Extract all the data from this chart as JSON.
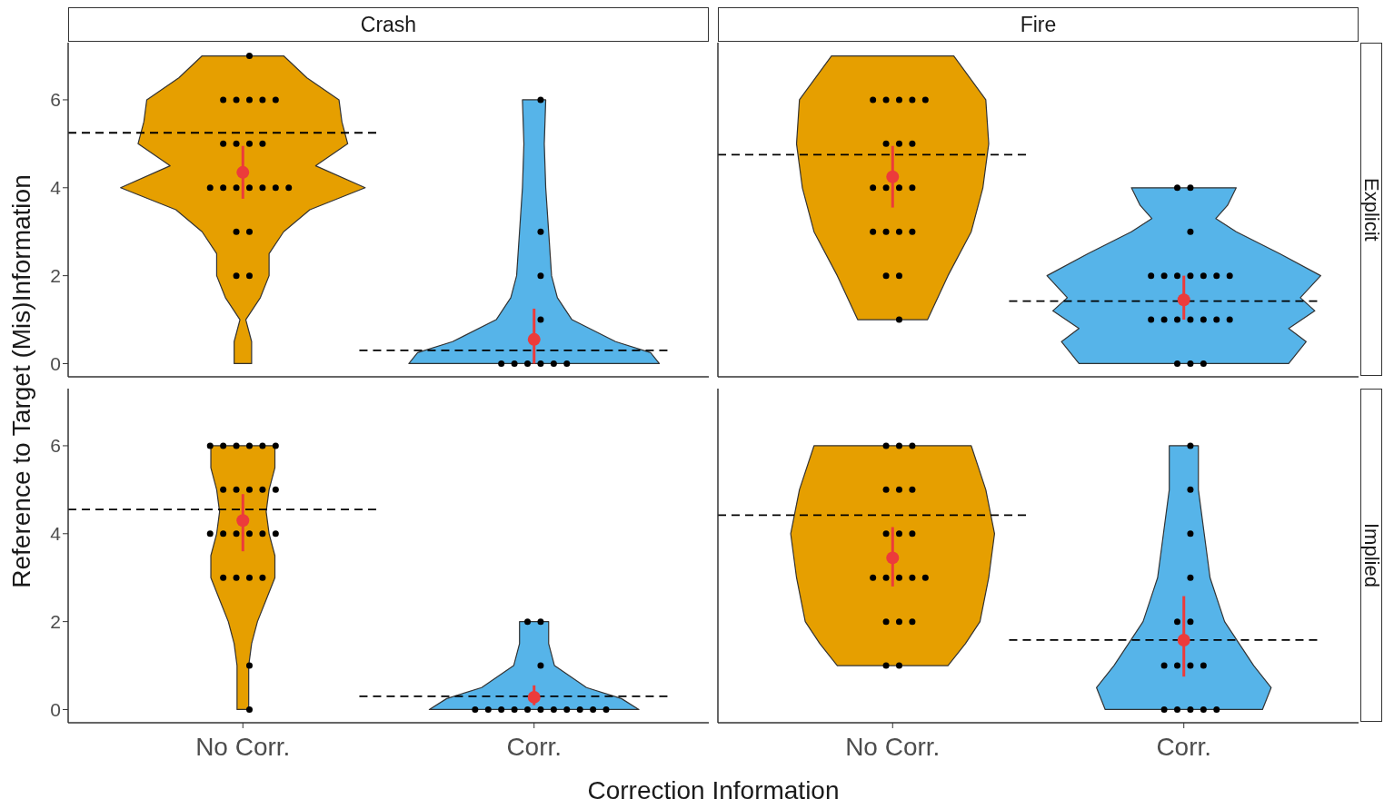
{
  "chart_data": [
    {
      "type": "scatter",
      "title": "Crash",
      "ylabel": "Reference to Target (Mis)Information",
      "categories": [
        "No Corr.",
        "Corr."
      ],
      "ylim": [
        -0.3,
        7.3
      ],
      "yticks": [
        0,
        2,
        4,
        6
      ],
      "tick_labels": "y",
      "ref_lines": [
        {
          "axis": "y",
          "value": 5.25,
          "color": "#000000",
          "line_style": "dashed"
        },
        {
          "axis": "y",
          "value": 0.3,
          "color": "#000000",
          "line_style": "dashed"
        }
      ],
      "series": [
        {
          "type": "scatter",
          "color": "#000000",
          "x": [
            "No Corr.",
            "No Corr.",
            "No Corr.",
            "No Corr.",
            "No Corr.",
            "No Corr.",
            "No Corr.",
            "No Corr.",
            "No Corr.",
            "No Corr.",
            "No Corr.",
            "No Corr.",
            "No Corr.",
            "No Corr.",
            "No Corr.",
            "No Corr.",
            "No Corr.",
            "No Corr.",
            "No Corr.",
            "No Corr.",
            "No Corr."
          ],
          "values": [
            6,
            4,
            2,
            3,
            3,
            2,
            4,
            4,
            4,
            6,
            5,
            5,
            5,
            5,
            4,
            6,
            6,
            6,
            7,
            4,
            4
          ]
        },
        {
          "type": "scatter",
          "color": "#000000",
          "x": [
            "Corr.",
            "Corr.",
            "Corr.",
            "Corr.",
            "Corr.",
            "Corr.",
            "Corr.",
            "Corr.",
            "Corr.",
            "Corr."
          ],
          "values": [
            6,
            3,
            2,
            1,
            0,
            0,
            0,
            0,
            0,
            0
          ]
        },
        {
          "type": "scatter",
          "color": "#ec3b3b",
          "x": [
            "No Corr.",
            "Corr."
          ],
          "values": [
            4.35,
            0.55
          ],
          "errors": [
            [
              3.75,
              4.95
            ],
            [
              0,
              1.25
            ]
          ]
        }
      ]
    },
    {
      "type": "scatter",
      "title": "Fire",
      "y2label": "Explicit",
      "categories": [
        "No Corr.",
        "Corr."
      ],
      "ylim": [
        -0.3,
        7.3
      ],
      "yticks": [
        0,
        2,
        4,
        6
      ],
      "tick_labels": false,
      "ref_lines": [
        {
          "axis": "y",
          "value": 4.75,
          "color": "#000000",
          "line_style": "dashed"
        },
        {
          "axis": "y",
          "value": 1.42,
          "color": "#000000",
          "line_style": "dashed"
        }
      ],
      "series": [
        {
          "type": "scatter",
          "color": "#000000",
          "x": [
            "No Corr.",
            "No Corr.",
            "No Corr.",
            "No Corr.",
            "No Corr.",
            "No Corr.",
            "No Corr.",
            "No Corr.",
            "No Corr.",
            "No Corr.",
            "No Corr.",
            "No Corr.",
            "No Corr.",
            "No Corr.",
            "No Corr.",
            "No Corr.",
            "No Corr.",
            "No Corr.",
            "No Corr."
          ],
          "values": [
            5,
            5,
            6,
            4,
            4,
            6,
            6,
            6,
            6,
            2,
            3,
            3,
            2,
            4,
            4,
            3,
            5,
            3,
            1
          ]
        },
        {
          "type": "scatter",
          "color": "#000000",
          "x": [
            "Corr.",
            "Corr.",
            "Corr.",
            "Corr.",
            "Corr.",
            "Corr.",
            "Corr.",
            "Corr.",
            "Corr.",
            "Corr.",
            "Corr.",
            "Corr.",
            "Corr.",
            "Corr.",
            "Corr.",
            "Corr.",
            "Corr.",
            "Corr.",
            "Corr.",
            "Corr."
          ],
          "values": [
            4,
            3,
            1,
            1,
            1,
            2,
            2,
            2,
            2,
            2,
            2,
            4,
            2,
            1,
            1,
            1,
            1,
            0,
            0,
            0
          ]
        },
        {
          "type": "scatter",
          "color": "#ec3b3b",
          "x": [
            "No Corr.",
            "Corr."
          ],
          "values": [
            4.25,
            1.45
          ],
          "errors": [
            [
              3.55,
              4.95
            ],
            [
              1.0,
              2.0
            ]
          ]
        }
      ]
    },
    {
      "type": "scatter",
      "xlabel": "Correction Information",
      "categories": [
        "No Corr.",
        "Corr."
      ],
      "ylim": [
        -0.3,
        7.3
      ],
      "yticks": [
        0,
        2,
        4,
        6
      ],
      "ref_lines": [
        {
          "axis": "y",
          "value": 4.55,
          "color": "#000000",
          "line_style": "dashed"
        },
        {
          "axis": "y",
          "value": 0.3,
          "color": "#000000",
          "line_style": "dashed"
        }
      ],
      "series": [
        {
          "type": "scatter",
          "color": "#000000",
          "x": [
            "No Corr.",
            "No Corr.",
            "No Corr.",
            "No Corr.",
            "No Corr.",
            "No Corr.",
            "No Corr.",
            "No Corr.",
            "No Corr.",
            "No Corr.",
            "No Corr.",
            "No Corr.",
            "No Corr.",
            "No Corr.",
            "No Corr.",
            "No Corr.",
            "No Corr.",
            "No Corr.",
            "No Corr.",
            "No Corr.",
            "No Corr.",
            "No Corr.",
            "No Corr."
          ],
          "values": [
            6,
            6,
            5,
            4,
            4,
            4,
            3,
            1,
            5,
            5,
            5,
            6,
            3,
            3,
            6,
            0,
            5,
            4,
            3,
            6,
            6,
            4,
            4
          ]
        },
        {
          "type": "scatter",
          "color": "#000000",
          "x": [
            "Corr.",
            "Corr.",
            "Corr.",
            "Corr.",
            "Corr.",
            "Corr.",
            "Corr.",
            "Corr.",
            "Corr.",
            "Corr.",
            "Corr.",
            "Corr.",
            "Corr.",
            "Corr."
          ],
          "values": [
            2,
            2,
            0,
            0,
            0,
            0,
            0,
            1,
            0,
            0,
            0,
            0,
            0,
            0
          ]
        },
        {
          "type": "scatter",
          "color": "#ec3b3b",
          "x": [
            "No Corr.",
            "Corr."
          ],
          "values": [
            4.3,
            0.28
          ],
          "errors": [
            [
              3.6,
              4.9
            ],
            [
              0.1,
              0.55
            ]
          ]
        }
      ]
    },
    {
      "type": "scatter",
      "y2label": "Implied",
      "categories": [
        "No Corr.",
        "Corr."
      ],
      "ylim": [
        -0.3,
        7.3
      ],
      "yticks": [
        0,
        2,
        4,
        6
      ],
      "tick_labels": "x",
      "ref_lines": [
        {
          "axis": "y",
          "value": 4.42,
          "color": "#000000",
          "line_style": "dashed"
        },
        {
          "axis": "y",
          "value": 1.58,
          "color": "#000000",
          "line_style": "dashed"
        }
      ],
      "series": [
        {
          "type": "scatter",
          "color": "#000000",
          "x": [
            "No Corr.",
            "No Corr.",
            "No Corr.",
            "No Corr.",
            "No Corr.",
            "No Corr.",
            "No Corr.",
            "No Corr.",
            "No Corr.",
            "No Corr.",
            "No Corr.",
            "No Corr.",
            "No Corr.",
            "No Corr.",
            "No Corr.",
            "No Corr.",
            "No Corr.",
            "No Corr.",
            "No Corr."
          ],
          "values": [
            5,
            6,
            4,
            3,
            4,
            3,
            6,
            6,
            3,
            1,
            5,
            2,
            4,
            3,
            5,
            2,
            2,
            1,
            3
          ]
        },
        {
          "type": "scatter",
          "color": "#000000",
          "x": [
            "Corr.",
            "Corr.",
            "Corr.",
            "Corr.",
            "Corr.",
            "Corr.",
            "Corr.",
            "Corr.",
            "Corr.",
            "Corr.",
            "Corr.",
            "Corr.",
            "Corr.",
            "Corr.",
            "Corr."
          ],
          "values": [
            5,
            2,
            3,
            4,
            6,
            1,
            0,
            1,
            0,
            0,
            0,
            1,
            2,
            1,
            0
          ]
        },
        {
          "type": "scatter",
          "color": "#ec3b3b",
          "x": [
            "No Corr.",
            "Corr."
          ],
          "values": [
            3.45,
            1.58
          ],
          "errors": [
            [
              2.8,
              4.15
            ],
            [
              0.75,
              2.58
            ]
          ]
        }
      ]
    }
  ]
}
